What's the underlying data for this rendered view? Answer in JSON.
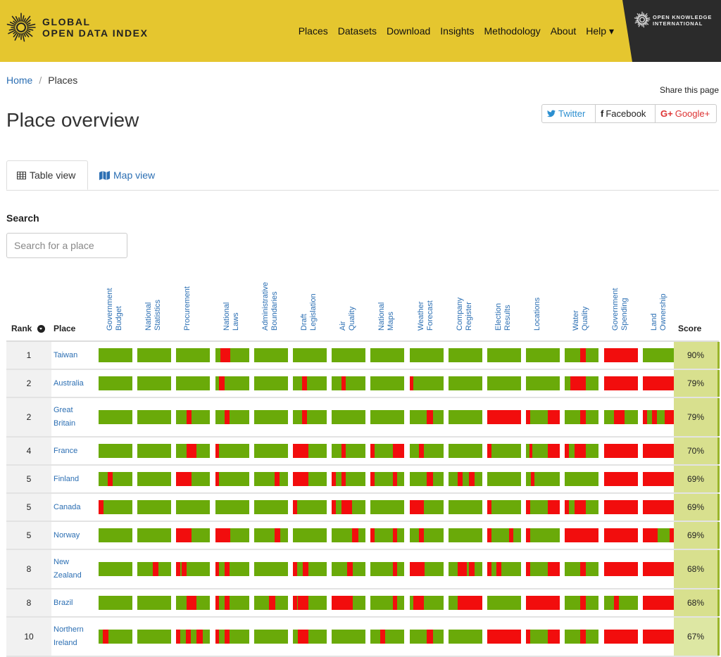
{
  "header": {
    "brand_line1": "GLOBAL",
    "brand_line2": "OPEN DATA INDEX",
    "nav": [
      "Places",
      "Datasets",
      "Download",
      "Insights",
      "Methodology",
      "About",
      "Help ▾"
    ],
    "partner_line1": "OPEN KNOWLEDGE",
    "partner_line2": "INTERNATIONAL"
  },
  "breadcrumb": {
    "home": "Home",
    "separator": "/",
    "current": "Places"
  },
  "share": {
    "label": "Share this page",
    "twitter": "Twitter",
    "facebook": "Facebook",
    "google": "Google+"
  },
  "page_title": "Place overview",
  "tabs": {
    "table": "Table view",
    "map": "Map view"
  },
  "search": {
    "label": "Search",
    "placeholder": "Search for a place"
  },
  "table": {
    "rank_header": "Rank",
    "place_header": "Place",
    "score_header": "Score",
    "datasets": [
      [
        "Government",
        "Budget"
      ],
      [
        "National",
        "Statistics"
      ],
      [
        "Procurement"
      ],
      [
        "National",
        "Laws"
      ],
      [
        "Administrative",
        "Boundaries"
      ],
      [
        "Draft",
        "Legislation"
      ],
      [
        "Air",
        "Quality"
      ],
      [
        "National",
        "Maps"
      ],
      [
        "Weather",
        "Forecast"
      ],
      [
        "Company",
        "Register"
      ],
      [
        "Election",
        "Results"
      ],
      [
        "Locations"
      ],
      [
        "Water",
        "Quality"
      ],
      [
        "Government",
        "Spending"
      ],
      [
        "Land",
        "Ownership"
      ]
    ],
    "rows": [
      {
        "rank": "1",
        "place": [
          "Taiwan"
        ],
        "score": "90%",
        "score_color": "#d8e08e",
        "height": 38,
        "bars": [
          [],
          [],
          [],
          [
            [
              0.15,
              0.45
            ]
          ],
          [],
          [],
          [],
          [],
          [],
          [],
          [],
          [],
          [
            [
              0.45,
              0.62
            ]
          ],
          [
            [
              0,
              1
            ]
          ],
          []
        ]
      },
      {
        "rank": "2",
        "place": [
          "Australia"
        ],
        "score": "79%",
        "score_color": "#d8e08e",
        "height": 38,
        "bars": [
          [],
          [],
          [],
          [
            [
              0.12,
              0.28
            ]
          ],
          [],
          [
            [
              0.28,
              0.42
            ]
          ],
          [
            [
              0.28,
              0.42
            ]
          ],
          [],
          [
            [
              0,
              0.12
            ]
          ],
          [],
          [],
          [],
          [
            [
              0.15,
              0.62
            ]
          ],
          [
            [
              0,
              1
            ]
          ],
          [
            [
              0,
              1
            ]
          ]
        ]
      },
      {
        "rank": "2",
        "place": [
          "Great",
          "Britain"
        ],
        "score": "79%",
        "score_color": "#d8e08e",
        "height": 54,
        "bars": [
          [],
          [],
          [
            [
              0.3,
              0.45
            ]
          ],
          [
            [
              0.28,
              0.42
            ]
          ],
          [],
          [
            [
              0.28,
              0.42
            ]
          ],
          [],
          [],
          [
            [
              0.5,
              0.7
            ]
          ],
          [],
          [
            [
              0,
              1
            ]
          ],
          [
            [
              0,
              0.12
            ],
            [
              0.65,
              1
            ]
          ],
          [
            [
              0.45,
              0.62
            ]
          ],
          [
            [
              0.3,
              0.62
            ]
          ],
          [
            [
              0,
              0.12
            ],
            [
              0.28,
              0.42
            ],
            [
              0.65,
              1
            ]
          ]
        ]
      },
      {
        "rank": "4",
        "place": [
          "France"
        ],
        "score": "70%",
        "score_color": "#d8e08e",
        "height": 38,
        "bars": [
          [],
          [],
          [
            [
              0.3,
              0.6
            ]
          ],
          [
            [
              0,
              0.12
            ]
          ],
          [],
          [
            [
              0,
              0.45
            ]
          ],
          [
            [
              0.28,
              0.42
            ]
          ],
          [
            [
              0,
              0.12
            ],
            [
              0.65,
              1
            ]
          ],
          [
            [
              0.28,
              0.42
            ]
          ],
          [],
          [
            [
              0,
              0.12
            ]
          ],
          [
            [
              0.1,
              0.18
            ],
            [
              0.65,
              1
            ]
          ],
          [
            [
              0,
              0.12
            ],
            [
              0.28,
              0.62
            ]
          ],
          [
            [
              0,
              1
            ]
          ],
          [
            [
              0,
              1
            ]
          ]
        ]
      },
      {
        "rank": "5",
        "place": [
          "Finland"
        ],
        "score": "69%",
        "score_color": "#d8e08e",
        "height": 38,
        "bars": [
          [
            [
              0.28,
              0.42
            ]
          ],
          [],
          [
            [
              0,
              0.45
            ]
          ],
          [
            [
              0,
              0.12
            ]
          ],
          [
            [
              0.6,
              0.75
            ]
          ],
          [
            [
              0,
              0.45
            ]
          ],
          [
            [
              0,
              0.12
            ],
            [
              0.28,
              0.42
            ]
          ],
          [
            [
              0,
              0.12
            ],
            [
              0.65,
              0.78
            ]
          ],
          [
            [
              0.5,
              0.7
            ]
          ],
          [
            [
              0.28,
              0.42
            ],
            [
              0.6,
              0.78
            ]
          ],
          [],
          [
            [
              0.15,
              0.25
            ]
          ],
          [],
          [
            [
              0,
              1
            ]
          ],
          [
            [
              0,
              1
            ]
          ]
        ]
      },
      {
        "rank": "5",
        "place": [
          "Canada"
        ],
        "score": "69%",
        "score_color": "#d8e08e",
        "height": 38,
        "bars": [
          [
            [
              0,
              0.15
            ]
          ],
          [],
          [],
          [],
          [],
          [
            [
              0,
              0.12
            ]
          ],
          [
            [
              0,
              0.12
            ],
            [
              0.28,
              0.6
            ]
          ],
          [],
          [
            [
              0,
              0.42
            ]
          ],
          [],
          [
            [
              0,
              0.12
            ]
          ],
          [
            [
              0,
              0.12
            ],
            [
              0.65,
              1
            ]
          ],
          [
            [
              0,
              0.12
            ],
            [
              0.28,
              0.62
            ]
          ],
          [
            [
              0,
              1
            ]
          ],
          [
            [
              0,
              1
            ]
          ]
        ]
      },
      {
        "rank": "5",
        "place": [
          "Norway"
        ],
        "score": "69%",
        "score_color": "#d8e08e",
        "height": 38,
        "bars": [
          [],
          [],
          [
            [
              0,
              0.45
            ]
          ],
          [
            [
              0,
              0.45
            ]
          ],
          [
            [
              0.6,
              0.78
            ]
          ],
          [],
          [
            [
              0.6,
              0.78
            ]
          ],
          [
            [
              0,
              0.12
            ],
            [
              0.65,
              0.78
            ]
          ],
          [
            [
              0.28,
              0.42
            ]
          ],
          [],
          [
            [
              0,
              0.12
            ],
            [
              0.65,
              0.78
            ]
          ],
          [
            [
              0,
              0.12
            ]
          ],
          [
            [
              0,
              1
            ]
          ],
          [
            [
              0,
              1
            ]
          ],
          [
            [
              0,
              0.45
            ],
            [
              0.8,
              1
            ]
          ]
        ]
      },
      {
        "rank": "8",
        "place": [
          "New",
          "Zealand"
        ],
        "score": "68%",
        "score_color": "#d8e08e",
        "height": 54,
        "bars": [
          [],
          [
            [
              0.45,
              0.62
            ]
          ],
          [
            [
              0,
              0.12
            ],
            [
              0.15,
              0.3
            ]
          ],
          [
            [
              0,
              0.12
            ],
            [
              0.28,
              0.42
            ]
          ],
          [],
          [
            [
              0,
              0.12
            ],
            [
              0.3,
              0.45
            ]
          ],
          [
            [
              0.45,
              0.62
            ]
          ],
          [
            [
              0.65,
              0.78
            ]
          ],
          [
            [
              0,
              0.45
            ]
          ],
          [
            [
              0.28,
              0.55
            ],
            [
              0.6,
              0.78
            ]
          ],
          [
            [
              0,
              0.12
            ],
            [
              0.28,
              0.42
            ]
          ],
          [
            [
              0,
              0.12
            ],
            [
              0.65,
              1
            ]
          ],
          [
            [
              0.45,
              0.62
            ]
          ],
          [
            [
              0,
              1
            ]
          ],
          [
            [
              0,
              1
            ]
          ]
        ]
      },
      {
        "rank": "8",
        "place": [
          "Brazil"
        ],
        "score": "68%",
        "score_color": "#d8e08e",
        "height": 38,
        "bars": [
          [],
          [],
          [
            [
              0.3,
              0.6
            ]
          ],
          [
            [
              0,
              0.12
            ],
            [
              0.28,
              0.42
            ]
          ],
          [
            [
              0.45,
              0.62
            ]
          ],
          [
            [
              0,
              0.12
            ],
            [
              0.15,
              0.45
            ]
          ],
          [
            [
              0,
              0.62
            ]
          ],
          [
            [
              0.65,
              0.78
            ]
          ],
          [
            [
              0.12,
              0.42
            ]
          ],
          [
            [
              0.28,
              1
            ]
          ],
          [],
          [
            [
              0,
              1
            ]
          ],
          [
            [
              0.45,
              0.62
            ]
          ],
          [
            [
              0.3,
              0.45
            ]
          ],
          [
            [
              0,
              1
            ]
          ]
        ]
      },
      {
        "rank": "10",
        "place": [
          "Northern",
          "Ireland"
        ],
        "score": "67%",
        "score_color": "#dde7a3",
        "height": 54,
        "bars": [
          [
            [
              0.12,
              0.3
            ]
          ],
          [],
          [
            [
              0,
              0.12
            ],
            [
              0.28,
              0.42
            ],
            [
              0.6,
              0.78
            ]
          ],
          [
            [
              0,
              0.12
            ],
            [
              0.28,
              0.42
            ]
          ],
          [],
          [
            [
              0.15,
              0.45
            ]
          ],
          [],
          [
            [
              0.28,
              0.42
            ]
          ],
          [
            [
              0.5,
              0.7
            ]
          ],
          [],
          [
            [
              0,
              1
            ]
          ],
          [
            [
              0,
              0.12
            ],
            [
              0.65,
              1
            ]
          ],
          [
            [
              0.45,
              0.62
            ]
          ],
          [
            [
              0,
              1
            ]
          ],
          [
            [
              0,
              1
            ]
          ]
        ]
      }
    ]
  }
}
